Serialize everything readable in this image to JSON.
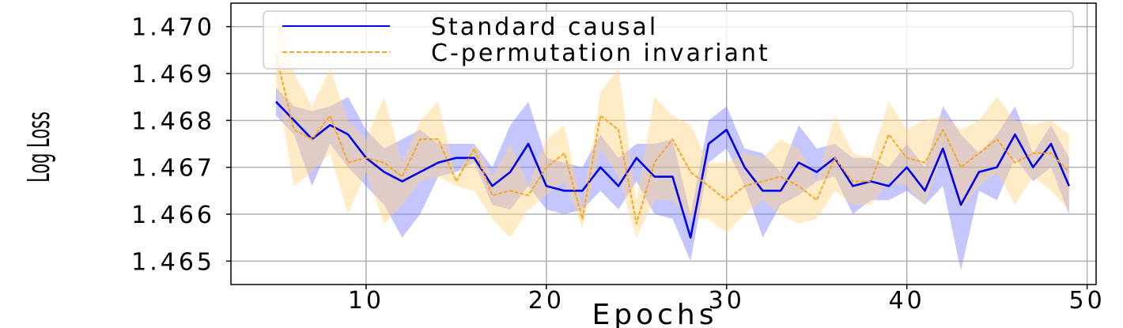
{
  "chart_data": {
    "type": "line",
    "xlabel": "Epochs",
    "ylabel": "Log Loss",
    "xlim": [
      2.5,
      50.5
    ],
    "ylim": [
      1.4645,
      1.4705
    ],
    "xticks": [
      10,
      20,
      30,
      40,
      50
    ],
    "yticks": [
      1.465,
      1.466,
      1.467,
      1.468,
      1.469,
      1.47
    ],
    "ytick_labels": [
      "1.465",
      "1.466",
      "1.467",
      "1.468",
      "1.469",
      "1.470"
    ],
    "grid": true,
    "legend_position": "top-right",
    "x": [
      5,
      6,
      7,
      8,
      9,
      10,
      11,
      12,
      13,
      14,
      15,
      16,
      17,
      18,
      19,
      20,
      21,
      22,
      23,
      24,
      25,
      26,
      27,
      28,
      29,
      30,
      31,
      32,
      33,
      34,
      35,
      36,
      37,
      38,
      39,
      40,
      41,
      42,
      43,
      44,
      45,
      46,
      47,
      48,
      49
    ],
    "series": [
      {
        "name": "Standard causal",
        "color": "#0000ee",
        "band_color": "#8080ff",
        "style": "solid",
        "values": [
          1.4684,
          1.468,
          1.4676,
          1.4679,
          1.4677,
          1.4672,
          1.4669,
          1.4667,
          1.4669,
          1.4671,
          1.4672,
          1.4672,
          1.4666,
          1.4669,
          1.4675,
          1.4666,
          1.4665,
          1.4665,
          1.467,
          1.4666,
          1.4672,
          1.4668,
          1.4668,
          1.4655,
          1.4675,
          1.4678,
          1.467,
          1.4665,
          1.4665,
          1.4671,
          1.4669,
          1.4672,
          1.4666,
          1.4667,
          1.4666,
          1.467,
          1.4665,
          1.4674,
          1.4662,
          1.4669,
          1.467,
          1.4677,
          1.467,
          1.4675,
          1.4666
        ],
        "lower": [
          1.4681,
          1.4677,
          1.4666,
          1.4675,
          1.467,
          1.4666,
          1.4662,
          1.4655,
          1.466,
          1.4668,
          1.4669,
          1.4671,
          1.4662,
          1.4661,
          1.4666,
          1.4661,
          1.466,
          1.4661,
          1.4665,
          1.4661,
          1.4667,
          1.466,
          1.4659,
          1.465,
          1.4671,
          1.4674,
          1.4666,
          1.4655,
          1.4662,
          1.4664,
          1.4667,
          1.4668,
          1.466,
          1.4663,
          1.4663,
          1.4665,
          1.4662,
          1.4666,
          1.4648,
          1.4665,
          1.4663,
          1.4672,
          1.4667,
          1.467,
          1.466
        ],
        "upper": [
          1.4687,
          1.4683,
          1.4682,
          1.4683,
          1.4685,
          1.4678,
          1.4674,
          1.4676,
          1.4678,
          1.4675,
          1.4675,
          1.4675,
          1.467,
          1.4679,
          1.4684,
          1.4672,
          1.4671,
          1.467,
          1.4677,
          1.4672,
          1.4675,
          1.4675,
          1.4676,
          1.466,
          1.468,
          1.4683,
          1.4674,
          1.4673,
          1.4669,
          1.4679,
          1.4674,
          1.4675,
          1.4672,
          1.4672,
          1.467,
          1.4675,
          1.467,
          1.4683,
          1.4677,
          1.4673,
          1.4677,
          1.4683,
          1.4673,
          1.4679,
          1.4672
        ]
      },
      {
        "name": "C-permutation invariant",
        "color": "#f5a623",
        "band_color": "#ffd280",
        "style": "dashed",
        "values": [
          1.4694,
          1.4678,
          1.4676,
          1.4681,
          1.4671,
          1.4672,
          1.4671,
          1.4668,
          1.4676,
          1.4676,
          1.4667,
          1.4674,
          1.4664,
          1.4665,
          1.4664,
          1.467,
          1.4673,
          1.4659,
          1.4681,
          1.4678,
          1.4658,
          1.4671,
          1.4676,
          1.4669,
          1.4666,
          1.4663,
          1.4666,
          1.4667,
          1.4668,
          1.4666,
          1.4663,
          1.4672,
          1.4667,
          1.4667,
          1.4677,
          1.4672,
          1.4671,
          1.4678,
          1.467,
          1.4673,
          1.4676,
          1.4671,
          1.4673,
          1.4673,
          1.4669
        ],
        "lower": [
          1.4688,
          1.4666,
          1.4669,
          1.4673,
          1.466,
          1.4669,
          1.4658,
          1.4662,
          1.4667,
          1.4668,
          1.4666,
          1.4665,
          1.4659,
          1.4655,
          1.4661,
          1.4664,
          1.4667,
          1.4657,
          1.4674,
          1.4668,
          1.4655,
          1.4663,
          1.4663,
          1.4659,
          1.4659,
          1.4656,
          1.466,
          1.4663,
          1.466,
          1.4658,
          1.4659,
          1.4665,
          1.4662,
          1.4662,
          1.4667,
          1.4666,
          1.4662,
          1.4673,
          1.4661,
          1.4666,
          1.4669,
          1.4662,
          1.4668,
          1.4665,
          1.4661
        ],
        "upper": [
          1.4703,
          1.469,
          1.4683,
          1.4691,
          1.468,
          1.4676,
          1.4685,
          1.4671,
          1.468,
          1.4684,
          1.4668,
          1.4675,
          1.4668,
          1.4675,
          1.4666,
          1.4676,
          1.4679,
          1.4661,
          1.4686,
          1.4691,
          1.4663,
          1.4685,
          1.4681,
          1.4679,
          1.4671,
          1.4671,
          1.4673,
          1.4672,
          1.4676,
          1.4674,
          1.4667,
          1.4681,
          1.4673,
          1.4672,
          1.4684,
          1.4678,
          1.468,
          1.4681,
          1.4678,
          1.468,
          1.4685,
          1.468,
          1.4679,
          1.468,
          1.4677
        ]
      }
    ]
  }
}
